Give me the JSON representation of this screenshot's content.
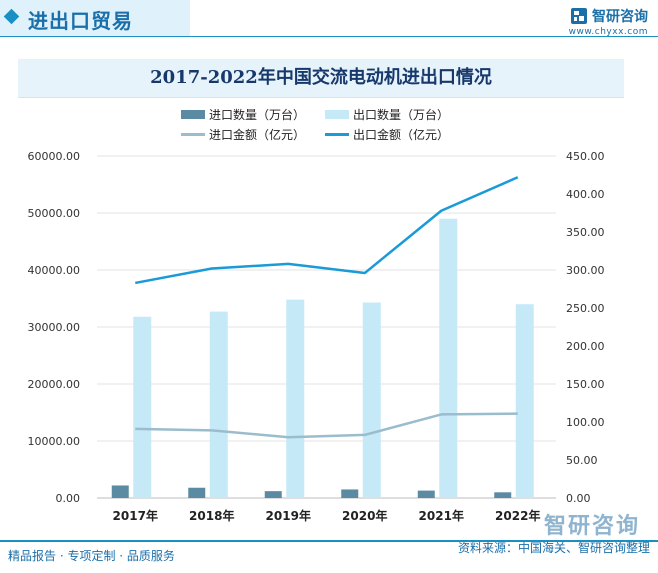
{
  "header": {
    "title": "进出口贸易",
    "brand_name": "智研咨询",
    "brand_url": "www.chyxx.com"
  },
  "footer": {
    "left": "精品报告 · 专项定制 · 品质服务",
    "right": "资料来源：中国海关、智研咨询整理",
    "brand": "智研咨询"
  },
  "colors": {
    "import_qty": "#5b8aa3",
    "export_qty": "#c6e9f8",
    "import_amt": "#9bbccc",
    "export_amt": "#1a9ad6",
    "accent": "#1a8fc4"
  },
  "chart_data": {
    "type": "bar",
    "title": "2017-2022年中国交流电动机进出口情况",
    "categories": [
      "2017年",
      "2018年",
      "2019年",
      "2020年",
      "2021年",
      "2022年"
    ],
    "series": [
      {
        "name": "进口数量（万台）",
        "type": "bar",
        "axis": "left",
        "values": [
          2200,
          1800,
          1200,
          1500,
          1300,
          1000
        ]
      },
      {
        "name": "出口数量（万台）",
        "type": "bar",
        "axis": "left",
        "values": [
          31800,
          32700,
          34800,
          34300,
          49000,
          34000
        ]
      },
      {
        "name": "进口金额（亿元）",
        "type": "line",
        "axis": "right",
        "values": [
          91,
          89,
          80,
          83,
          110,
          111
        ]
      },
      {
        "name": "出口金额（亿元）",
        "type": "line",
        "axis": "right",
        "values": [
          283,
          302,
          308,
          296,
          378,
          422
        ]
      }
    ],
    "y_left": {
      "min": 0,
      "max": 60000,
      "ticks": [
        "0.00",
        "10000.00",
        "20000.00",
        "30000.00",
        "40000.00",
        "50000.00",
        "60000.00"
      ]
    },
    "y_right": {
      "min": 0,
      "max": 450,
      "ticks": [
        "0.00",
        "50.00",
        "100.00",
        "150.00",
        "200.00",
        "250.00",
        "300.00",
        "350.00",
        "400.00",
        "450.00"
      ]
    },
    "grid": true,
    "legend": "top-center"
  }
}
